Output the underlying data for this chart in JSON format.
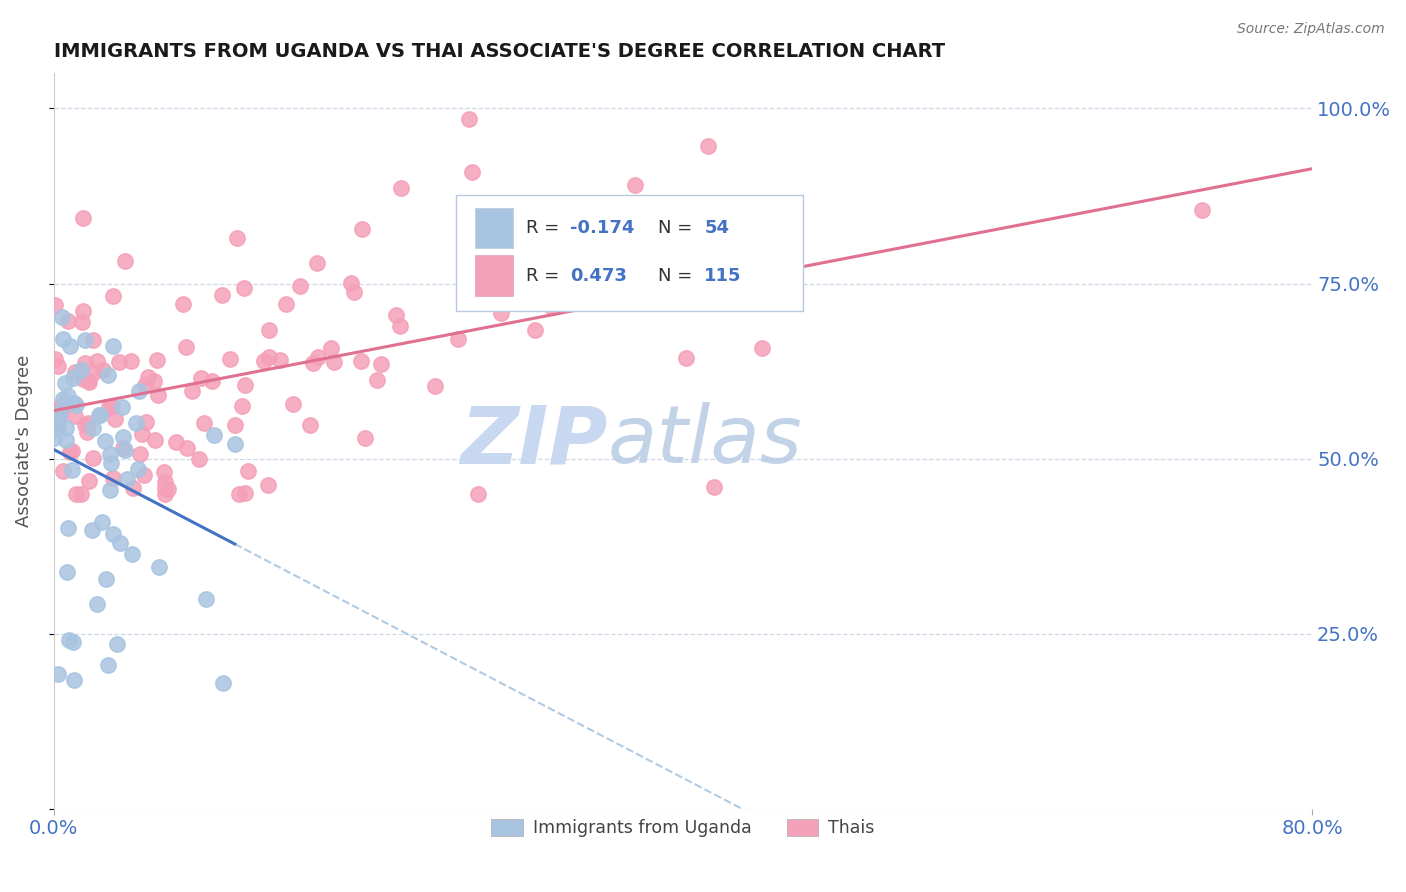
{
  "title": "IMMIGRANTS FROM UGANDA VS THAI ASSOCIATE'S DEGREE CORRELATION CHART",
  "source": "Source: ZipAtlas.com",
  "ylabel": "Associate's Degree",
  "legend_labels": [
    "Immigrants from Uganda",
    "Thais"
  ],
  "r_uganda": -0.174,
  "n_uganda": 54,
  "r_thai": 0.473,
  "n_thai": 115,
  "xmin": 0.0,
  "xmax": 0.8,
  "ymin": 0.0,
  "ymax": 1.05,
  "yticks": [
    0.0,
    0.25,
    0.5,
    0.75,
    1.0
  ],
  "ytick_labels_right": [
    "",
    "25.0%",
    "50.0%",
    "75.0%",
    "100.0%"
  ],
  "xtick_positions": [
    0.0,
    0.8
  ],
  "xtick_labels": [
    "0.0%",
    "80.0%"
  ],
  "color_uganda": "#a8c4e0",
  "color_thai": "#f4a0b8",
  "line_color_uganda": "#4472c4",
  "line_color_thai": "#e07090",
  "line_color_uganda_dash": "#8fb4d8",
  "watermark_zip": "ZIP",
  "watermark_atlas": "atlas",
  "watermark_color": "#c8d8f0",
  "title_color": "#1a1a1a",
  "axis_label_color": "#4472c4",
  "background_color": "#ffffff",
  "grid_color": "#d0d8e8",
  "legend_box_color": "#e8f0f8",
  "legend_border_color": "#b8c8e0"
}
